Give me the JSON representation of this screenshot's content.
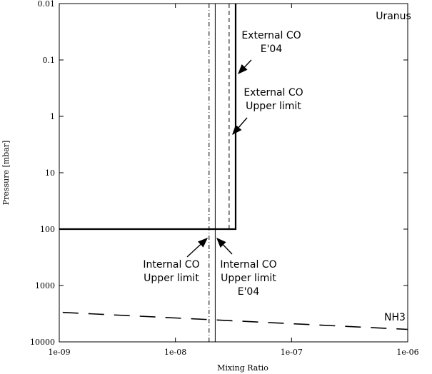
{
  "chart_data": {
    "type": "line",
    "xlabel": "Mixing Ratio",
    "ylabel": "Pressure [mbar]",
    "xscale": "log",
    "yscale": "log",
    "yinverted": true,
    "xlim": [
      1e-09,
      1e-06
    ],
    "ylim": [
      0.01,
      10000
    ],
    "xticks": [
      {
        "value": 1e-09,
        "label": "1e-09"
      },
      {
        "value": 1e-08,
        "label": "1e-08"
      },
      {
        "value": 1e-07,
        "label": "1e-07"
      },
      {
        "value": 1e-06,
        "label": "1e-06"
      }
    ],
    "yticks": [
      0.01,
      0.1,
      1,
      10,
      100,
      1000,
      10000
    ],
    "series": [
      {
        "color": "#000000",
        "style": "solid",
        "width": 2.2,
        "x": [
          1e-09,
          3.3e-08,
          3.3e-08
        ],
        "y": [
          100,
          100,
          0.01
        ]
      },
      {
        "color": "#000000",
        "style": "dashed",
        "width": 1,
        "x": [
          2.9e-08,
          2.9e-08
        ],
        "y": [
          100,
          0.01
        ]
      },
      {
        "color": "#000000",
        "style": "dashdot",
        "width": 1,
        "x": [
          1.95e-08,
          1.95e-08
        ],
        "y": [
          10000,
          0.01
        ]
      },
      {
        "color": "#000000",
        "style": "solid",
        "width": 1,
        "x": [
          2.2e-08,
          2.2e-08
        ],
        "y": [
          10000,
          0.01
        ]
      },
      {
        "color": "#000000",
        "style": "longdash",
        "width": 1.6,
        "x": [
          1.07e-09,
          1e-06
        ],
        "y": [
          3000,
          6000
        ]
      }
    ],
    "annotations": [
      {
        "lines": [
          "Uranus"
        ]
      },
      {
        "lines": [
          "External CO",
          "E'04"
        ]
      },
      {
        "lines": [
          "External CO",
          "Upper limit"
        ]
      },
      {
        "lines": [
          "Internal CO",
          "Upper limit"
        ]
      },
      {
        "lines": [
          "Internal CO",
          "Upper limit",
          "E'04"
        ]
      },
      {
        "lines": [
          "NH3"
        ]
      }
    ]
  }
}
